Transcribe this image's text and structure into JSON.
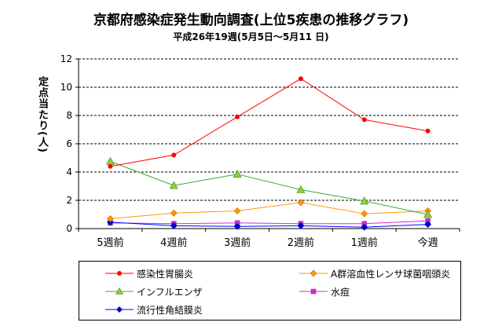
{
  "chart_data": {
    "type": "line",
    "title": "京都府感染症発生動向調査(上位5疾患の推移グラフ)",
    "subtitle": "平成26年19週(5月5日～5月11 日)",
    "ylabel": "定点当たり(人)",
    "xlabel": "",
    "categories": [
      "5週前",
      "4週前",
      "3週前",
      "2週前",
      "1週前",
      "今週"
    ],
    "ylim": [
      0,
      12
    ],
    "yticks": [
      0,
      2,
      4,
      6,
      8,
      10,
      12
    ],
    "grid": "horizontal-dashed",
    "legend_position": "bottom",
    "series": [
      {
        "name": "感染性胃腸炎",
        "color": "#ff0000",
        "marker": "circle",
        "marker_color": "#ff0000",
        "values": [
          4.4,
          5.2,
          7.9,
          10.6,
          7.7,
          6.9
        ]
      },
      {
        "name": "A群溶血性レンサ球菌咽頭炎",
        "color": "#ff9900",
        "marker": "diamond",
        "marker_color": "#ff9900",
        "values": [
          0.7,
          1.1,
          1.25,
          1.85,
          1.05,
          1.25
        ]
      },
      {
        "name": "インフルエンザ",
        "color": "#33aa33",
        "marker": "triangle",
        "marker_color": "#99cc33",
        "values": [
          4.75,
          3.05,
          3.85,
          2.75,
          1.95,
          1.0
        ]
      },
      {
        "name": "水痘",
        "color": "#cc33cc",
        "marker": "square",
        "marker_color": "#cc33cc",
        "values": [
          0.4,
          0.35,
          0.4,
          0.35,
          0.35,
          0.55
        ]
      },
      {
        "name": "流行性角結膜炎",
        "color": "#0000ff",
        "marker": "diamond",
        "marker_color": "#0000cc",
        "values": [
          0.45,
          0.2,
          0.15,
          0.2,
          0.1,
          0.3
        ]
      }
    ]
  }
}
